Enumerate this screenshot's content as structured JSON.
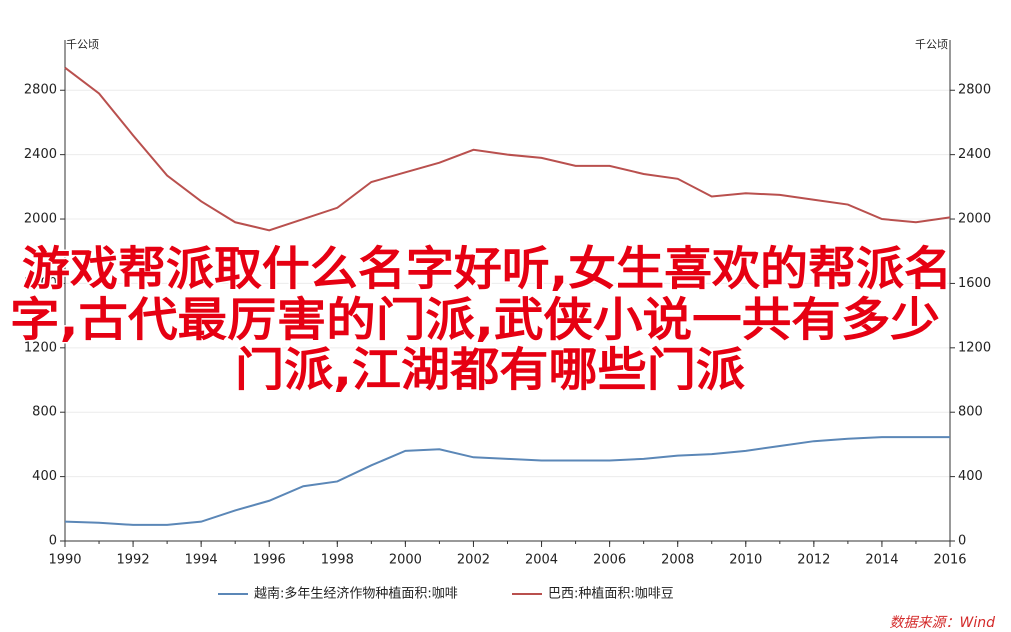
{
  "chart_data": {
    "type": "line",
    "unit_left": "千公顷",
    "unit_right": "千公顷",
    "x": [
      1990,
      1991,
      1992,
      1993,
      1994,
      1995,
      1996,
      1997,
      1998,
      1999,
      2000,
      2001,
      2002,
      2003,
      2004,
      2005,
      2006,
      2007,
      2008,
      2009,
      2010,
      2011,
      2012,
      2013,
      2014,
      2015,
      2016
    ],
    "xlim": [
      1990,
      2016
    ],
    "xticks": [
      1990,
      1992,
      1994,
      1996,
      1998,
      2000,
      2002,
      2004,
      2006,
      2008,
      2010,
      2012,
      2014,
      2016
    ],
    "ylim": [
      0,
      3050
    ],
    "yticks": [
      0,
      400,
      800,
      1200,
      1600,
      2000,
      2400,
      2800
    ],
    "y2lim": [
      0,
      3050
    ],
    "y2ticks": [
      0,
      400,
      800,
      1200,
      1600,
      2000,
      2400,
      2800
    ],
    "series": [
      {
        "name": "越南:多年生经济作物种植面积:咖啡",
        "color": "#5b87b7",
        "values": [
          120,
          113,
          100,
          100,
          120,
          190,
          250,
          340,
          370,
          470,
          560,
          570,
          520,
          510,
          500,
          500,
          500,
          510,
          530,
          540,
          560,
          590,
          620,
          635,
          645,
          645,
          645
        ]
      },
      {
        "name": "巴西:种植面积:咖啡豆",
        "color": "#b9504e",
        "axis": "y2",
        "values": [
          2940,
          2780,
          2520,
          2270,
          2110,
          1980,
          1930,
          2000,
          2070,
          2230,
          2290,
          2350,
          2430,
          2400,
          2380,
          2330,
          2330,
          2280,
          2250,
          2140,
          2160,
          2150,
          2120,
          2090,
          2000,
          1980,
          2010
        ]
      }
    ],
    "overlay_lines": [
      "游戏帮派取什么名字好听,女生喜欢的帮派名",
      "字,古代最厉害的门派,武侠小说一共有多少",
      "门派,江湖都有哪些门派"
    ],
    "source": "数据来源：Wind"
  }
}
